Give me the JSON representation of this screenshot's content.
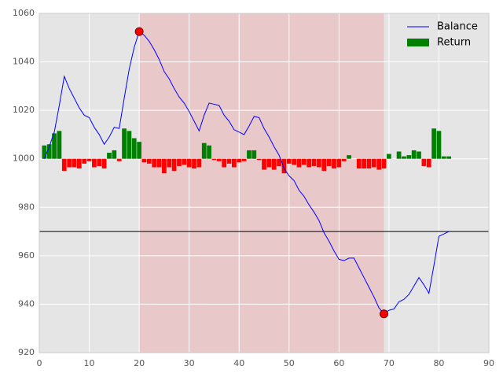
{
  "chart_data": {
    "type": "line-bar",
    "x": [
      1,
      2,
      3,
      4,
      5,
      6,
      7,
      8,
      9,
      10,
      11,
      12,
      13,
      14,
      15,
      16,
      17,
      18,
      19,
      20,
      21,
      22,
      23,
      24,
      25,
      26,
      27,
      28,
      29,
      30,
      31,
      32,
      33,
      34,
      35,
      36,
      37,
      38,
      39,
      40,
      41,
      42,
      43,
      44,
      45,
      46,
      47,
      48,
      49,
      50,
      51,
      52,
      53,
      54,
      55,
      56,
      57,
      58,
      59,
      60,
      61,
      62,
      63,
      64,
      65,
      66,
      67,
      68,
      69,
      70,
      71,
      72,
      73,
      74,
      75,
      76,
      77,
      78,
      79,
      80,
      81,
      82
    ],
    "series": [
      {
        "name": "Balance",
        "color": "#0000ff",
        "values": [
          1000,
          1005,
          1011,
          1022,
          1034,
          1029,
          1025,
          1021,
          1018,
          1017,
          1013,
          1010,
          1006,
          1009,
          1013,
          1012.5,
          1025,
          1037,
          1046,
          1052.5,
          1051,
          1048.5,
          1045,
          1041,
          1036,
          1033,
          1029,
          1025.5,
          1023,
          1019.5,
          1015.5,
          1011.5,
          1018,
          1023,
          1022.5,
          1022,
          1018,
          1015.5,
          1012,
          1011,
          1010,
          1013.5,
          1017.5,
          1017,
          1012.5,
          1009,
          1005,
          1001.5,
          996,
          993,
          991,
          987,
          984.5,
          981,
          978,
          974.5,
          969.5,
          966,
          962,
          958.5,
          958,
          959,
          959,
          955,
          951,
          947,
          943,
          938.5,
          936,
          937.5,
          938,
          941,
          942,
          944,
          947.5,
          951,
          948,
          944.5,
          956,
          968,
          969,
          970
        ]
      },
      {
        "name": "Return",
        "color": "#008000",
        "negative_color": "#ff0000",
        "bar_bottom": 1000,
        "values": [
          5.5,
          6,
          10.5,
          11.5,
          -5,
          -3.5,
          -3.5,
          -4,
          -2,
          -1,
          -3.5,
          -3,
          -4,
          2.5,
          3.5,
          -1,
          12.5,
          11.5,
          8.5,
          7,
          -1.5,
          -2,
          -3.5,
          -3.5,
          -6,
          -3.5,
          -5,
          -3,
          -2.5,
          -3.5,
          -4,
          -3.5,
          6.5,
          5.5,
          -0.5,
          -1,
          -3.5,
          -2,
          -3.5,
          -1.5,
          -1,
          3.5,
          3.5,
          -0.5,
          -4.5,
          -3.5,
          -4.5,
          -3,
          -6,
          -2,
          -2.5,
          -3.5,
          -2.5,
          -3.5,
          -3,
          -3.5,
          -5,
          -3,
          -4,
          -3.5,
          -1,
          1.5,
          0,
          -4,
          -4,
          -4,
          -3.5,
          -4.5,
          -4,
          2,
          0,
          3,
          1,
          1.5,
          3.5,
          3,
          -3,
          -3.5,
          12.5,
          11.5,
          1,
          1
        ]
      }
    ],
    "markers": [
      {
        "x": 20,
        "y": 1052.5
      },
      {
        "x": 69,
        "y": 936
      }
    ],
    "marker_color": "#ff0000",
    "span": [
      20,
      69
    ],
    "span_color": "#e8c8c8",
    "hline": 970,
    "hline_color": "#000000",
    "xlim": [
      0,
      90
    ],
    "xticks": [
      0,
      10,
      20,
      30,
      40,
      50,
      60,
      70,
      80,
      90
    ],
    "ylim": [
      920,
      1060
    ],
    "yticks": [
      920,
      940,
      960,
      980,
      1000,
      1020,
      1040,
      1060
    ],
    "grid": true,
    "legend": "upper right"
  }
}
